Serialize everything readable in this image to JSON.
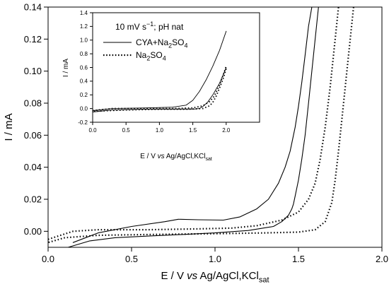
{
  "chart_data": [
    {
      "type": "line",
      "title": "",
      "xlabel_parts": [
        "E / V ",
        "vs",
        " Ag/AgCl,KCl",
        "sat"
      ],
      "ylabel": "I / mA",
      "xlim": [
        0.0,
        2.0
      ],
      "ylim": [
        -0.01,
        0.14
      ],
      "xticks": [
        "0.0",
        "0.5",
        "1.0",
        "1.5",
        "2.0"
      ],
      "xtick_values": [
        0,
        0.5,
        1.0,
        1.5,
        2.0
      ],
      "yticks": [
        "0.00",
        "0.02",
        "0.04",
        "0.06",
        "0.08",
        "0.10",
        "0.12",
        "0.14"
      ],
      "ytick_values": [
        0,
        0.02,
        0.04,
        0.06,
        0.08,
        0.1,
        0.12,
        0.14
      ],
      "grid": false,
      "series": [
        {
          "style": "solid",
          "x": [
            0.15,
            0.3,
            0.5,
            0.7,
            0.78,
            0.9,
            1.05,
            1.15,
            1.25,
            1.32,
            1.38,
            1.42,
            1.45,
            1.48,
            1.5,
            1.52,
            1.54,
            1.56,
            1.58
          ],
          "y": [
            -0.007,
            -0.001,
            0.003,
            0.006,
            0.0075,
            0.0072,
            0.007,
            0.009,
            0.014,
            0.02,
            0.03,
            0.04,
            0.05,
            0.065,
            0.078,
            0.093,
            0.11,
            0.128,
            0.14
          ]
        },
        {
          "style": "solid",
          "x": [
            1.62,
            1.6,
            1.58,
            1.56,
            1.54,
            1.52,
            1.5,
            1.48,
            1.47,
            1.46,
            1.44,
            1.4,
            1.35,
            1.2,
            1.0,
            0.8,
            0.6,
            0.4,
            0.25,
            0.12
          ],
          "y": [
            0.14,
            0.12,
            0.1,
            0.08,
            0.06,
            0.045,
            0.032,
            0.022,
            0.017,
            0.014,
            0.01,
            0.006,
            0.003,
            0.0005,
            -0.001,
            -0.002,
            -0.003,
            -0.004,
            -0.006,
            -0.01
          ]
        },
        {
          "style": "dotted",
          "x": [
            0.0,
            0.15,
            0.3,
            0.6,
            0.9,
            1.1,
            1.25,
            1.4,
            1.5,
            1.56,
            1.6,
            1.63,
            1.66,
            1.69,
            1.72,
            1.74
          ],
          "y": [
            -0.005,
            0.0,
            0.001,
            0.001,
            0.0015,
            0.002,
            0.0035,
            0.007,
            0.012,
            0.02,
            0.03,
            0.045,
            0.065,
            0.09,
            0.12,
            0.14
          ]
        },
        {
          "style": "dotted",
          "x": [
            1.83,
            1.8,
            1.78,
            1.76,
            1.74,
            1.72,
            1.7,
            1.66,
            1.6,
            1.5,
            1.3,
            1.0,
            0.6,
            0.3,
            0.1,
            0.0
          ],
          "y": [
            0.14,
            0.11,
            0.09,
            0.07,
            0.05,
            0.032,
            0.018,
            0.006,
            0.001,
            -0.0005,
            -0.001,
            -0.0015,
            -0.002,
            -0.0025,
            -0.004,
            -0.007
          ]
        }
      ]
    },
    {
      "type": "line",
      "title": "",
      "xlabel_parts": [
        "E / V ",
        "vs",
        " Ag/AgCl,KCl",
        "sat"
      ],
      "ylabel": "I / mA",
      "xlim": [
        0.0,
        2.5
      ],
      "ylim": [
        -0.2,
        1.4
      ],
      "xticks": [
        "0.0",
        "0.5",
        "1.0",
        "1.5",
        "2.0"
      ],
      "xtick_values": [
        0,
        0.5,
        1.0,
        1.5,
        2.0
      ],
      "yticks": [
        "-0.2",
        "0.0",
        "0.2",
        "0.4",
        "0.6",
        "0.8",
        "1.0",
        "1.2",
        "1.4"
      ],
      "ytick_values": [
        -0.2,
        0,
        0.2,
        0.4,
        0.6,
        0.8,
        1.0,
        1.2,
        1.4
      ],
      "grid": false,
      "annotation_parts": [
        "10 mV s",
        "−1",
        "; pH nat"
      ],
      "legend": [
        {
          "style": "solid",
          "parts": [
            "CYA+Na",
            "2",
            "SO",
            "4"
          ]
        },
        {
          "style": "dotted",
          "parts": [
            "Na",
            "2",
            "SO",
            "4"
          ]
        }
      ],
      "series": [
        {
          "style": "solid",
          "x": [
            0.0,
            0.3,
            0.8,
            1.2,
            1.4,
            1.5,
            1.6,
            1.7,
            1.8,
            1.9,
            2.0
          ],
          "y": [
            -0.03,
            0.0,
            0.01,
            0.02,
            0.05,
            0.12,
            0.25,
            0.42,
            0.62,
            0.85,
            1.13
          ]
        },
        {
          "style": "solid",
          "x": [
            2.0,
            1.9,
            1.8,
            1.72,
            1.65,
            1.6,
            1.5,
            1.2,
            0.8,
            0.3,
            0.0
          ],
          "y": [
            0.6,
            0.37,
            0.2,
            0.09,
            0.03,
            0.0,
            -0.01,
            -0.01,
            -0.01,
            -0.02,
            -0.05
          ]
        },
        {
          "style": "dotted",
          "x": [
            0.0,
            0.3,
            0.8,
            1.2,
            1.5,
            1.65,
            1.75,
            1.82,
            1.9,
            1.96,
            2.0
          ],
          "y": [
            -0.03,
            0.0,
            0.0,
            0.0,
            0.01,
            0.04,
            0.1,
            0.18,
            0.34,
            0.5,
            0.62
          ]
        },
        {
          "style": "dotted",
          "x": [
            2.0,
            1.96,
            1.9,
            1.85,
            1.8,
            1.75,
            1.65,
            1.4,
            1.0,
            0.5,
            0.0
          ],
          "y": [
            0.58,
            0.45,
            0.3,
            0.18,
            0.09,
            0.04,
            0.0,
            -0.01,
            -0.01,
            -0.02,
            -0.04
          ]
        }
      ]
    }
  ]
}
